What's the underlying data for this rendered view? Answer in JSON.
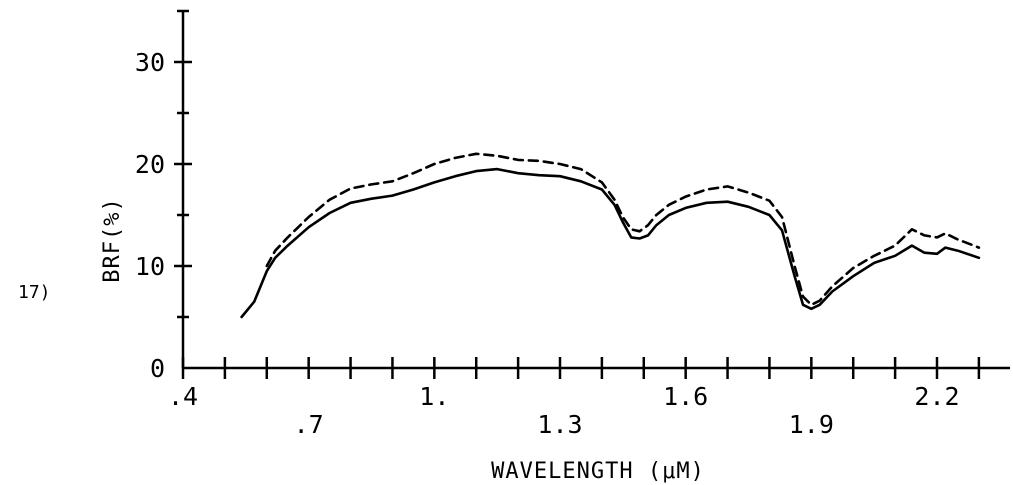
{
  "figure_label": "17)",
  "chart_data": {
    "type": "line",
    "title": "",
    "xlabel": "WAVELENGTH (μM)",
    "ylabel": "BRF(%)",
    "xlim": [
      0.4,
      2.3
    ],
    "ylim": [
      0,
      35
    ],
    "x_ticks": [
      0.4,
      0.7,
      1.0,
      1.3,
      1.6,
      1.9,
      2.2
    ],
    "x_tick_labels": [
      ".4",
      ".7",
      "1.",
      "1.3",
      "1.6",
      "1.9",
      "2.2"
    ],
    "y_ticks": [
      0,
      10,
      20,
      30
    ],
    "y_tick_labels": [
      "0",
      "10",
      "20",
      "30"
    ],
    "grid": false,
    "series": [
      {
        "style": "solid",
        "x": [
          0.54,
          0.57,
          0.6,
          0.62,
          0.65,
          0.7,
          0.75,
          0.8,
          0.85,
          0.9,
          0.95,
          1.0,
          1.05,
          1.1,
          1.15,
          1.2,
          1.25,
          1.3,
          1.35,
          1.4,
          1.43,
          1.45,
          1.47,
          1.49,
          1.51,
          1.53,
          1.56,
          1.6,
          1.65,
          1.7,
          1.75,
          1.8,
          1.83,
          1.86,
          1.88,
          1.9,
          1.92,
          1.95,
          2.0,
          2.05,
          2.1,
          2.14,
          2.17,
          2.2,
          2.22,
          2.25,
          2.3
        ],
        "y": [
          5,
          6.5,
          9.5,
          10.8,
          12,
          13.8,
          15.2,
          16.2,
          16.6,
          16.9,
          17.5,
          18.2,
          18.8,
          19.3,
          19.5,
          19.1,
          18.9,
          18.8,
          18.3,
          17.5,
          16.0,
          14.3,
          12.8,
          12.7,
          13.0,
          14.0,
          15.0,
          15.7,
          16.2,
          16.3,
          15.8,
          15.0,
          13.5,
          9.0,
          6.2,
          5.8,
          6.2,
          7.5,
          9.0,
          10.3,
          11.0,
          12.0,
          11.3,
          11.2,
          11.8,
          11.5,
          10.8
        ],
        "values_note_removed": true
      },
      {
        "style": "dashed",
        "x": [
          0.6,
          0.62,
          0.65,
          0.7,
          0.75,
          0.8,
          0.85,
          0.9,
          0.95,
          1.0,
          1.05,
          1.1,
          1.15,
          1.2,
          1.25,
          1.3,
          1.35,
          1.4,
          1.43,
          1.45,
          1.47,
          1.49,
          1.51,
          1.53,
          1.56,
          1.6,
          1.65,
          1.7,
          1.75,
          1.8,
          1.83,
          1.86,
          1.88,
          1.9,
          1.92,
          1.95,
          2.0,
          2.05,
          2.1,
          2.14,
          2.17,
          2.2,
          2.22,
          2.25,
          2.3
        ],
        "y": [
          10.0,
          11.5,
          12.8,
          14.8,
          16.5,
          17.6,
          18.0,
          18.3,
          19.1,
          20.0,
          20.6,
          21.0,
          20.8,
          20.4,
          20.3,
          20.0,
          19.5,
          18.2,
          16.5,
          14.8,
          13.6,
          13.4,
          14.0,
          15.0,
          16.0,
          16.8,
          17.5,
          17.8,
          17.2,
          16.4,
          14.8,
          10.0,
          7.0,
          6.2,
          6.6,
          8.0,
          9.8,
          11.0,
          12.0,
          13.6,
          13.0,
          12.8,
          13.2,
          12.6,
          11.8
        ]
      }
    ]
  }
}
